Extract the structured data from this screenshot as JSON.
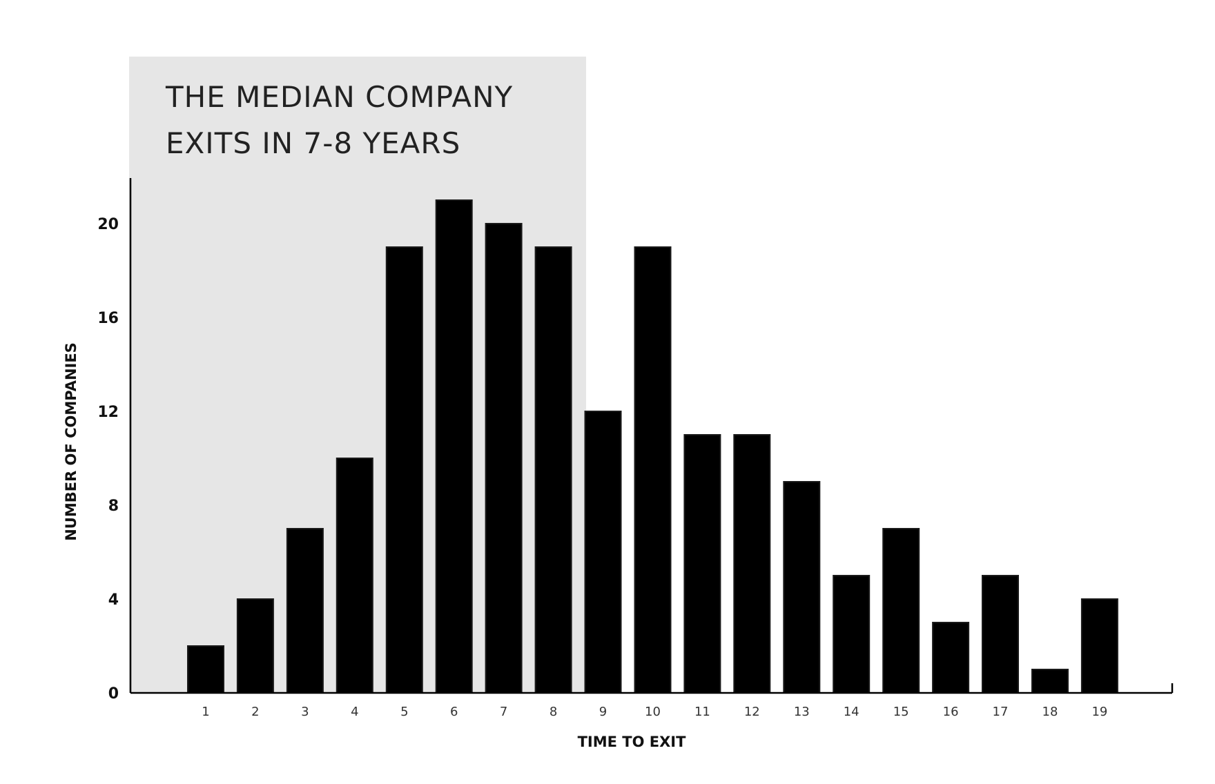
{
  "chart_data": {
    "type": "bar",
    "title_lines": [
      "THE MEDIAN COMPANY",
      "EXITS IN 7-8 YEARS"
    ],
    "xlabel": "TIME TO EXIT",
    "ylabel": "NUMBER OF COMPANIES",
    "categories": [
      "1",
      "2",
      "3",
      "4",
      "5",
      "6",
      "7",
      "8",
      "9",
      "10",
      "11",
      "12",
      "13",
      "14",
      "15",
      "16",
      "17",
      "18",
      "19"
    ],
    "values": [
      2,
      4,
      7,
      10,
      19,
      21,
      20,
      19,
      12,
      19,
      11,
      11,
      9,
      5,
      7,
      3,
      5,
      1,
      4
    ],
    "yticks": [
      0,
      4,
      8,
      12,
      16,
      20
    ],
    "ylim": [
      0,
      22
    ],
    "highlight_range": [
      "1",
      "8"
    ],
    "grid": false,
    "bar_color": "#000000",
    "highlight_color": "#e6e6e6"
  }
}
